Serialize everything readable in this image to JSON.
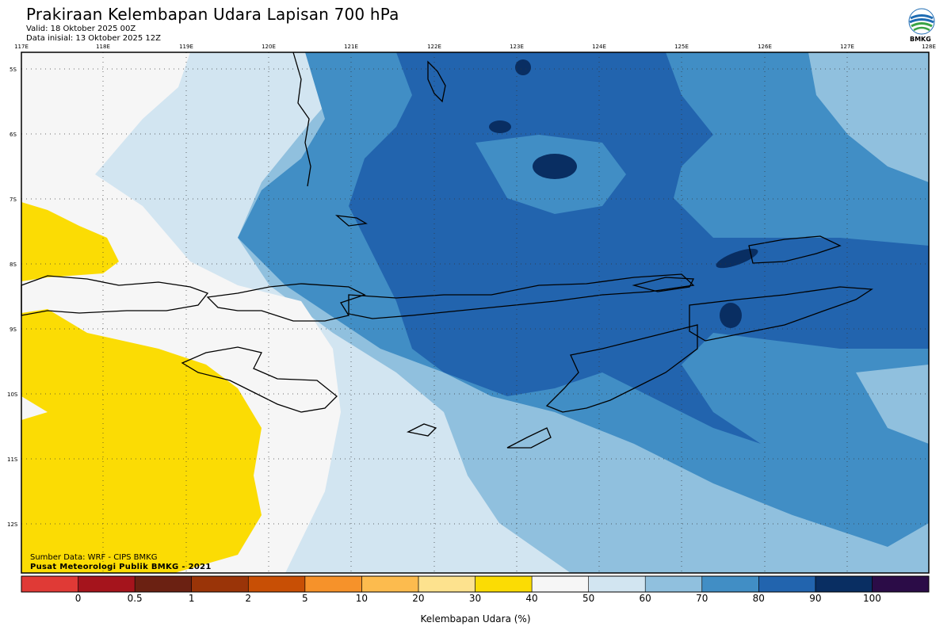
{
  "header": {
    "title": "Prakiraan Kelembapan Udara Lapisan 700 hPa",
    "valid": "Valid: 18 Oktober 2025 00Z",
    "initial": "Data inisial: 13 Oktober 2025 12Z"
  },
  "logo": {
    "text": "BMKG",
    "icon": "bmkg-logo-icon"
  },
  "map": {
    "lon_labels": [
      "117E",
      "118E",
      "119E",
      "120E",
      "121E",
      "122E",
      "123E",
      "124E",
      "125E",
      "126E",
      "127E",
      "128E"
    ],
    "lat_labels": [
      "5S",
      "6S",
      "7S",
      "8S",
      "9S",
      "10S",
      "11S",
      "12S"
    ],
    "variable": "Kelembapan Udara lapisan 700 hPa",
    "unit": "%"
  },
  "footer": {
    "source": "Sumber Data: WRF - CIPS BMKG",
    "institution": "Pusat Meteorologi Publik BMKG - 2021"
  },
  "colorbar": {
    "title": "Kelembapan Udara (%)",
    "labels": [
      "0",
      "0.5",
      "1",
      "2",
      "5",
      "10",
      "20",
      "30",
      "40",
      "50",
      "60",
      "70",
      "80",
      "90",
      "100"
    ],
    "colors": [
      "#e03a36",
      "#a5141c",
      "#6b2112",
      "#9a3408",
      "#c84f05",
      "#f6922a",
      "#fcbb4e",
      "#fde28e",
      "#fbdc04",
      "#f6f6f6",
      "#d2e5f1",
      "#90c0de",
      "#418ec5",
      "#2264ae",
      "#092e62",
      "#2b0c47"
    ]
  },
  "colors": {
    "dry": "#fbdc04",
    "neutral": "#f6f6f6",
    "c50_60": "#d2e5f1",
    "c60_70": "#90c0de",
    "c70_80": "#418ec5",
    "c80_90": "#2264ae",
    "c90_100": "#092e62"
  }
}
